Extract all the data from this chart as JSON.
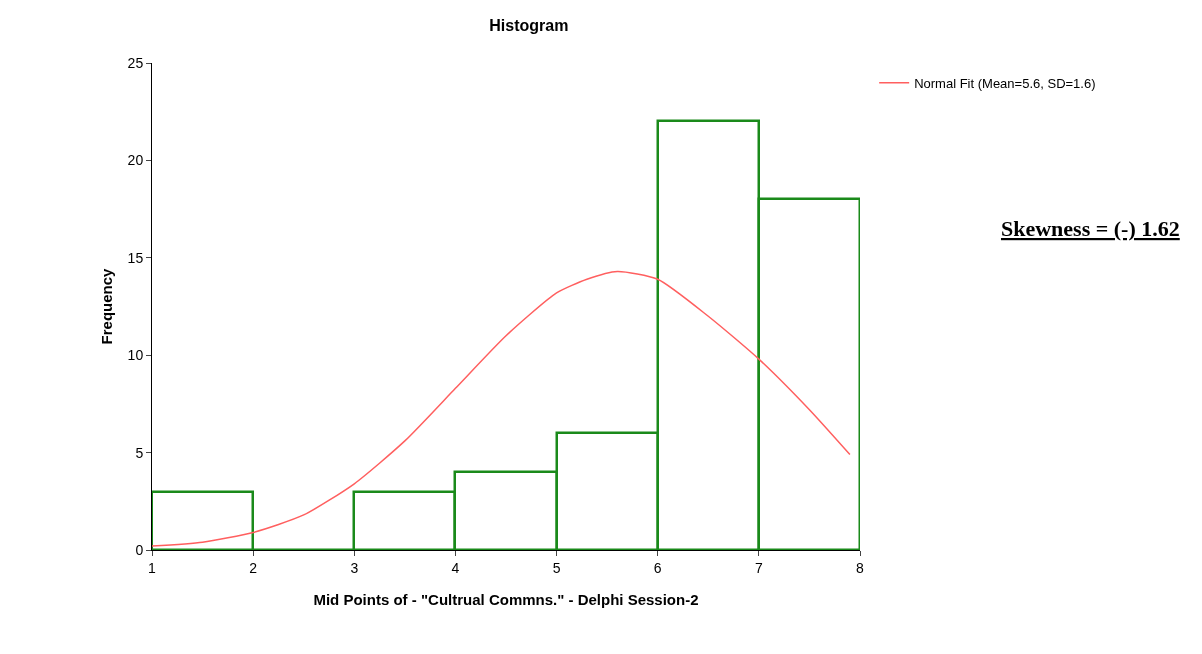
{
  "chart_data": {
    "type": "histogram",
    "title": "Histogram",
    "xlabel": "Mid Points of - \"Cultrual Commns.\" - Delphi Session-2",
    "ylabel": "Frequency",
    "xlim": [
      1,
      8
    ],
    "xticks": [
      1,
      2,
      3,
      4,
      5,
      6,
      7,
      8
    ],
    "ylim": [
      0,
      25
    ],
    "yticks": [
      0,
      5,
      10,
      15,
      20,
      25
    ],
    "grid": false,
    "legend": "top right",
    "annotations": [
      "Skewness = (-) 1.62"
    ],
    "series": [
      {
        "color": "#1a8a1a",
        "bins": [
          1,
          2,
          3,
          4,
          5,
          6,
          7,
          8
        ],
        "values": [
          3,
          0,
          3,
          4,
          6,
          22,
          18
        ]
      },
      {
        "type": "line",
        "name": "Normal Fit (Mean=5.6, SD=1.6)",
        "color": "#ff5f5f",
        "x": [
          1,
          1.5,
          2,
          2.5,
          3,
          3.5,
          4,
          4.5,
          5,
          5.3,
          5.6,
          6,
          6.5,
          7,
          7.5,
          7.9
        ],
        "values": [
          0.2,
          0.4,
          0.9,
          1.8,
          3.4,
          5.6,
          8.3,
          11,
          13.2,
          13.9,
          14.3,
          13.9,
          12,
          9.8,
          7.2,
          4.9
        ]
      }
    ]
  }
}
